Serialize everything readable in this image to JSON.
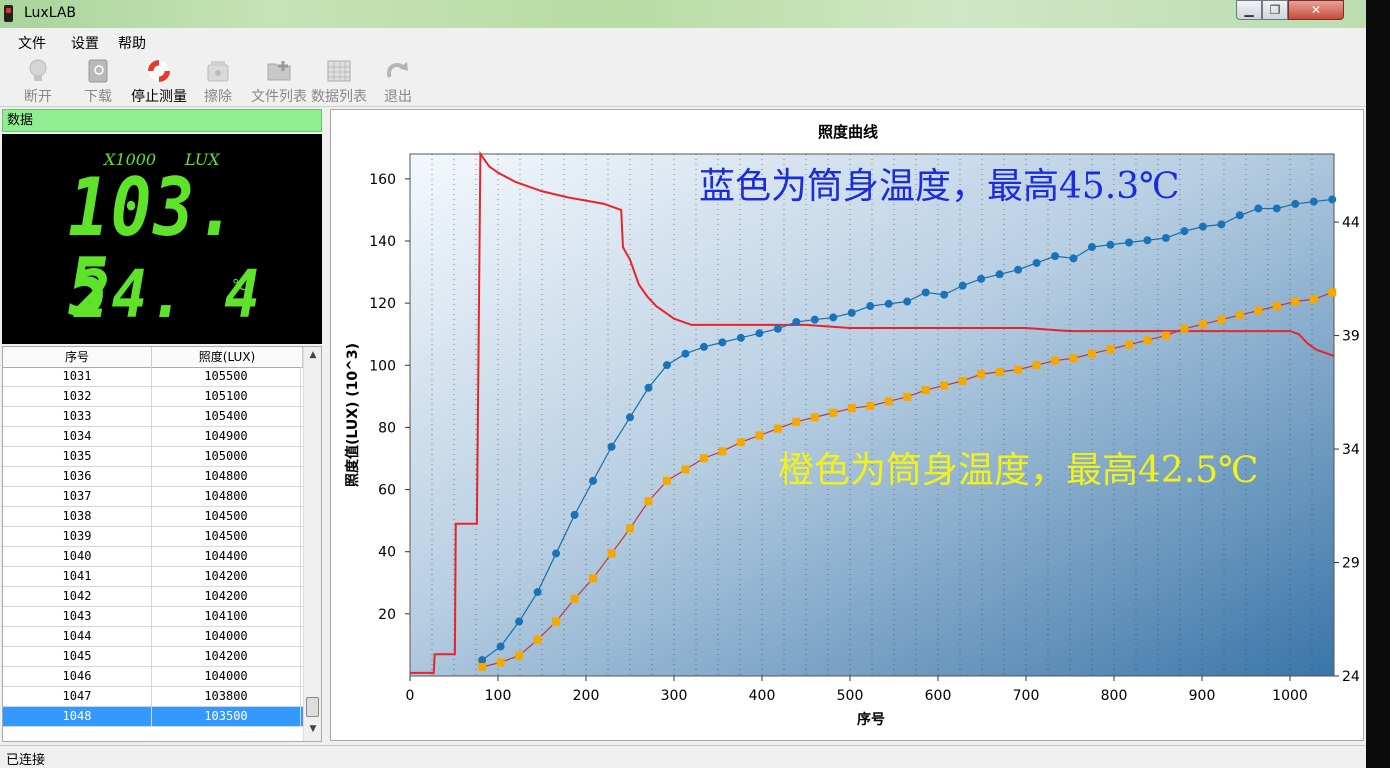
{
  "window": {
    "title": "LuxLAB"
  },
  "menu": [
    "文件",
    "设置",
    "帮助"
  ],
  "toolbar": [
    {
      "label": "断开",
      "icon": "bulb-icon",
      "enabled": false
    },
    {
      "label": "下载",
      "icon": "book-download-icon",
      "enabled": false
    },
    {
      "label": "停止测量",
      "icon": "lifebuoy-icon",
      "enabled": true
    },
    {
      "label": "擦除",
      "icon": "erase-device-icon",
      "enabled": false
    },
    {
      "label": "文件列表",
      "icon": "folder-add-icon",
      "enabled": false
    },
    {
      "label": "数据列表",
      "icon": "spreadsheet-icon",
      "enabled": false
    },
    {
      "label": "退出",
      "icon": "redo-arrow-icon",
      "enabled": false
    }
  ],
  "data_panel": {
    "header": "数据",
    "multiplier": "X1000",
    "unit": "LUX",
    "lux_value": "103. 5",
    "temperature": "24. 4",
    "temp_unit": "℃"
  },
  "table": {
    "headers": [
      "序号",
      "照度(LUX)"
    ],
    "rows": [
      [
        "1031",
        "105500"
      ],
      [
        "1032",
        "105100"
      ],
      [
        "1033",
        "105400"
      ],
      [
        "1034",
        "104900"
      ],
      [
        "1035",
        "105000"
      ],
      [
        "1036",
        "104800"
      ],
      [
        "1037",
        "104800"
      ],
      [
        "1038",
        "104500"
      ],
      [
        "1039",
        "104500"
      ],
      [
        "1040",
        "104400"
      ],
      [
        "1041",
        "104200"
      ],
      [
        "1042",
        "104200"
      ],
      [
        "1043",
        "104100"
      ],
      [
        "1044",
        "104000"
      ],
      [
        "1045",
        "104200"
      ],
      [
        "1046",
        "104000"
      ],
      [
        "1047",
        "103800"
      ],
      [
        "1048",
        "103500"
      ]
    ],
    "selected_row": 17
  },
  "status": "已连接",
  "colors": {
    "lux_line": "#e8242b",
    "blue_series": "#1a73b8",
    "orange_series": "#f5a800",
    "annot_blue": "#1c2cdc",
    "annot_yellow": "#f2f21a",
    "digits": "#5ee22a",
    "header_green": "#90ee90"
  },
  "chart_data": {
    "type": "line",
    "title": "照度曲线",
    "xlabel": "序号",
    "ylabel": "照度值(LUX)  (10^3)",
    "xlim": [
      0,
      1050
    ],
    "ylim": [
      0,
      168
    ],
    "y2lim": [
      24,
      47
    ],
    "xticks": [
      0,
      100,
      200,
      300,
      400,
      500,
      600,
      700,
      800,
      900,
      1000
    ],
    "yticks": [
      20,
      40,
      60,
      80,
      100,
      120,
      140,
      160
    ],
    "y2ticks": [
      24,
      29,
      34,
      39,
      44
    ],
    "annotations": [
      "蓝色为筒身温度，最高45.3℃",
      "橙色为筒身温度，最高42.5℃"
    ],
    "series": [
      {
        "axis": "left",
        "x": [
          0,
          27,
          28,
          51,
          52,
          75,
          76,
          80,
          85,
          90,
          100,
          120,
          150,
          180,
          200,
          220,
          240,
          242,
          250,
          260,
          270,
          280,
          290,
          300,
          310,
          320,
          350,
          400,
          450,
          500,
          550,
          600,
          650,
          700,
          750,
          800,
          850,
          900,
          950,
          1000,
          1010,
          1020,
          1030,
          1040,
          1050
        ],
        "y": [
          1,
          1,
          7,
          7,
          49,
          49,
          49,
          168,
          166,
          164,
          162,
          159,
          156,
          154,
          153,
          152,
          150,
          138,
          134,
          126,
          122,
          119,
          117,
          115,
          114,
          113,
          113,
          113,
          113,
          112,
          112,
          112,
          112,
          112,
          111,
          111,
          111,
          111,
          111,
          111,
          110,
          107,
          105,
          104,
          103
        ]
      },
      {
        "axis": "right",
        "x": [
          82,
          103,
          124,
          145,
          166,
          187,
          208,
          229,
          250,
          271,
          292,
          313,
          334,
          355,
          376,
          397,
          418,
          439,
          460,
          481,
          502,
          523,
          544,
          565,
          586,
          607,
          628,
          649,
          670,
          691,
          712,
          733,
          754,
          775,
          796,
          817,
          838,
          859,
          880,
          901,
          922,
          943,
          964,
          985,
          1006,
          1027,
          1048
        ],
        "y": [
          24.7,
          25.3,
          26.4,
          27.7,
          29.4,
          31.1,
          32.6,
          34.1,
          35.4,
          36.7,
          37.7,
          38.2,
          38.5,
          38.7,
          38.9,
          39.1,
          39.3,
          39.6,
          39.7,
          39.8,
          40.0,
          40.3,
          40.4,
          40.5,
          40.9,
          40.8,
          41.2,
          41.5,
          41.7,
          41.9,
          42.2,
          42.5,
          42.4,
          42.9,
          43.0,
          43.1,
          43.2,
          43.3,
          43.6,
          43.8,
          43.9,
          44.3,
          44.6,
          44.6,
          44.8,
          44.9,
          45.0
        ]
      },
      {
        "axis": "right",
        "x": [
          82,
          103,
          124,
          145,
          166,
          187,
          208,
          229,
          250,
          271,
          292,
          313,
          334,
          355,
          376,
          397,
          418,
          439,
          460,
          481,
          502,
          523,
          544,
          565,
          586,
          607,
          628,
          649,
          670,
          691,
          712,
          733,
          754,
          775,
          796,
          817,
          838,
          859,
          880,
          901,
          922,
          943,
          964,
          985,
          1006,
          1027,
          1048
        ],
        "y": [
          24.4,
          24.6,
          24.9,
          25.6,
          26.4,
          27.4,
          28.3,
          29.4,
          30.5,
          31.7,
          32.6,
          33.1,
          33.6,
          33.9,
          34.3,
          34.6,
          34.9,
          35.2,
          35.4,
          35.6,
          35.8,
          35.9,
          36.1,
          36.3,
          36.6,
          36.8,
          37.0,
          37.3,
          37.4,
          37.5,
          37.7,
          37.9,
          38.0,
          38.2,
          38.4,
          38.6,
          38.8,
          39.0,
          39.3,
          39.5,
          39.7,
          39.9,
          40.1,
          40.3,
          40.5,
          40.6,
          40.9
        ]
      }
    ]
  }
}
